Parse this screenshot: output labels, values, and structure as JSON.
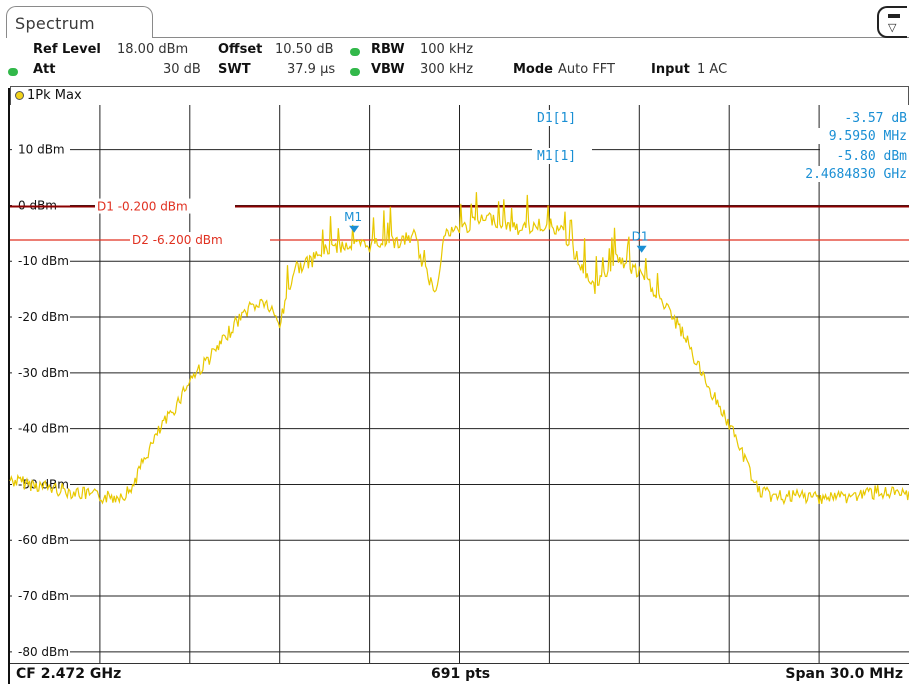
{
  "tab": {
    "title": "Spectrum"
  },
  "settings": {
    "ref_level_label": "Ref Level",
    "ref_level_value": "18.00 dBm",
    "offset_label": "Offset",
    "offset_value": "10.50 dB",
    "rbw_label": "RBW",
    "rbw_value": "100 kHz",
    "att_label": "Att",
    "att_value": "30 dB",
    "swt_label": "SWT",
    "swt_value": "37.9 µs",
    "vbw_label": "VBW",
    "vbw_value": "300 kHz",
    "mode_label": "Mode",
    "mode_value": "Auto FFT",
    "input_label": "Input",
    "input_value": "1 AC"
  },
  "trace": {
    "label": "1Pk Max",
    "color": "#e8c800"
  },
  "marker_table": {
    "d1_label": "D1[1]",
    "d1_value": "-3.57 dB",
    "d1_freq": "9.5950 MHz",
    "m1_label": "M1[1]",
    "m1_value": "-5.80 dBm",
    "m1_freq": "2.4684830 GHz",
    "color": "#1a8fd4"
  },
  "footer": {
    "cf": "CF 2.472 GHz",
    "points": "691 pts",
    "span": "Span 30.0 MHz"
  },
  "chart_data": {
    "type": "line",
    "title": "",
    "ylabel": "",
    "xlabel": "",
    "xlim": [
      2.457,
      2.487
    ],
    "ylim": [
      -82,
      18
    ],
    "y_ticks": [
      10,
      0,
      -10,
      -20,
      -30,
      -40,
      -50,
      -60,
      -70,
      -80
    ],
    "y_tick_labels": [
      "10 dBm",
      "0 dBm",
      "-10 dBm",
      "-20 dBm",
      "-30 dBm",
      "-40 dBm",
      "-50 dBm",
      "-60 dBm",
      "-70 dBm",
      "-80 dBm"
    ],
    "grid": true,
    "limit_lines": [
      {
        "name": "D1",
        "label": "D1  -0.200 dBm",
        "value": -0.2,
        "color": "#8b0000"
      },
      {
        "name": "D2",
        "label": "D2  -6.200 dBm",
        "value": -6.2,
        "color": "#e03020"
      }
    ],
    "markers": [
      {
        "name": "M1",
        "x": 2.468483,
        "y": -5.8
      },
      {
        "name": "D1",
        "x": 2.478078,
        "y": -9.37
      }
    ],
    "series": [
      {
        "x": [
          2.457,
          2.458,
          2.459,
          2.46,
          2.4605,
          2.461,
          2.4615,
          2.462,
          2.4625,
          2.463,
          2.4635,
          2.464,
          2.4645,
          2.465,
          2.4655,
          2.466,
          2.4665,
          2.467,
          2.4672,
          2.4675,
          2.468,
          2.4685,
          2.469,
          2.4695,
          2.47,
          2.4705,
          2.4708,
          2.4712,
          2.4715,
          2.472,
          2.4725,
          2.473,
          2.4735,
          2.474,
          2.4745,
          2.475,
          2.4755,
          2.476,
          2.4765,
          2.477,
          2.4772,
          2.4775,
          2.478,
          2.4785,
          2.479,
          2.4795,
          2.48,
          2.4805,
          2.481,
          2.4815,
          2.482,
          2.4825,
          2.483,
          2.484,
          2.485,
          2.486,
          2.487
        ],
        "values": [
          -48,
          -49,
          -50,
          -51,
          -51,
          -50,
          -44,
          -39,
          -35,
          -30,
          -27,
          -24,
          -20,
          -17,
          -16,
          -20,
          -10,
          -9,
          -8,
          -7,
          -6,
          -5.8,
          -6,
          -5,
          -5.5,
          -4,
          -10,
          -14,
          -4,
          -3,
          -2,
          -1,
          -2,
          -3,
          -2.5,
          -2,
          -4,
          -9,
          -14,
          -10,
          -8,
          -9.4,
          -11,
          -14,
          -18,
          -22,
          -28,
          -33,
          -38,
          -44,
          -50,
          -51,
          -51,
          -51,
          -51,
          -50,
          -51
        ]
      }
    ]
  }
}
